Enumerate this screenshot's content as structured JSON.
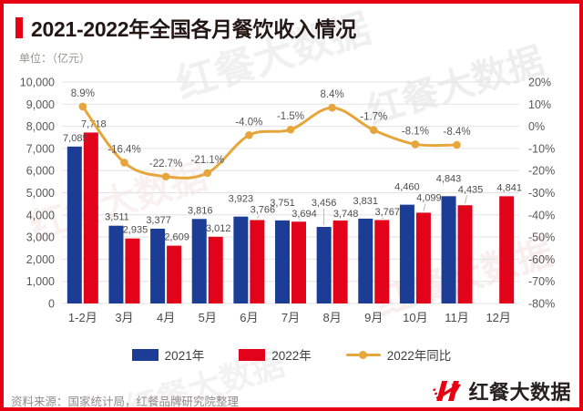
{
  "header": {
    "title": "2021-2022年全国各月餐饮收入情况",
    "unit_label": "单位：（亿元）"
  },
  "chart_data": {
    "type": "bar",
    "subtype": "grouped-bar-with-line-overlay",
    "title": "2021-2022年全国各月餐饮收入情况",
    "unit": "亿元",
    "categories": [
      "1-2月",
      "3月",
      "4月",
      "5月",
      "6月",
      "7月",
      "8月",
      "9月",
      "10月",
      "11月",
      "12月"
    ],
    "series": [
      {
        "name": "2021年",
        "type": "bar",
        "color": "#1B3D96",
        "values": [
          7085,
          3511,
          3377,
          3816,
          3923,
          3751,
          3456,
          3831,
          4460,
          4843,
          null
        ]
      },
      {
        "name": "2022年",
        "type": "bar",
        "color": "#E2031A",
        "values": [
          7718,
          2935,
          2609,
          3012,
          3766,
          3694,
          3748,
          3767,
          4099,
          4435,
          4841
        ]
      },
      {
        "name": "2022年同比",
        "type": "line",
        "axis": "right",
        "unit": "%",
        "color": "#E7A63B",
        "values": [
          8.9,
          -16.4,
          -22.7,
          -21.1,
          -4.0,
          -1.5,
          8.4,
          -1.7,
          -8.1,
          -8.4,
          null
        ]
      }
    ],
    "left_axis": {
      "min": 0,
      "max": 10000,
      "step": 1000,
      "tick_labels": [
        "10,000",
        "9,000",
        "8,000",
        "7,000",
        "6,000",
        "5,000",
        "4,000",
        "3,000",
        "2,000",
        "1,000",
        "0"
      ]
    },
    "right_axis": {
      "min": -80,
      "max": 20,
      "step": 10,
      "unit": "%",
      "tick_labels": [
        "20%",
        "10%",
        "0%",
        "-10%",
        "-20%",
        "-30%",
        "-40%",
        "-50%",
        "-60%",
        "-70%",
        "-80%"
      ]
    },
    "grid": true,
    "legend_position": "bottom"
  },
  "legend": {
    "bar2021_label": "2021年",
    "bar2022_label": "2022年",
    "line_label": "2022年同比"
  },
  "footer": {
    "source": "资料来源：国家统计局，红餐品牌研究院整理",
    "logo_text": "红餐大数据"
  },
  "watermark": {
    "text": "红餐大数据"
  },
  "colors": {
    "brand_red": "#E60012",
    "bar_blue": "#1B3D96",
    "bar_red": "#E2031A",
    "line_amber": "#E7A63B",
    "grid_line": "#E3E3E3",
    "axis_text": "#595757",
    "value_label_text": "#4D4D4D",
    "x_label_text": "#4A4A4A",
    "title_text": "#231815",
    "unit_text": "#9A9492",
    "source_text": "#8F8C8B",
    "logo_text": "#26201E"
  }
}
